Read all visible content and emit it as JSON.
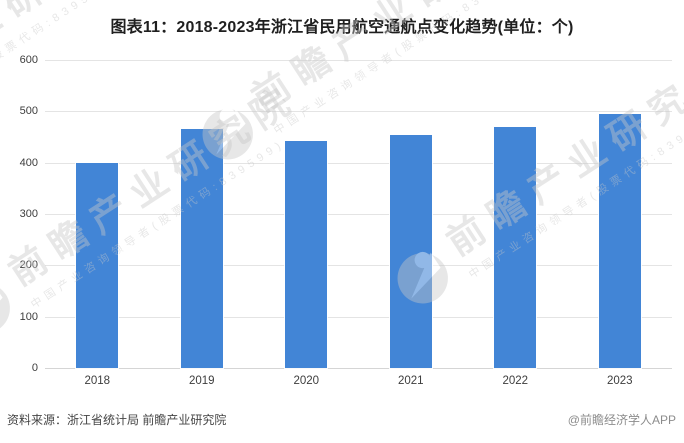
{
  "header": {
    "title": "图表11：2018-2023年浙江省民用航空通航点变化趋势(单位：个)"
  },
  "chart_data": {
    "type": "bar",
    "title": "图表11：2018-2023年浙江省民用航空通航点变化趋势(单位：个)",
    "unit": "个",
    "categories": [
      "2018",
      "2019",
      "2020",
      "2021",
      "2022",
      "2023"
    ],
    "values": [
      400,
      466,
      442,
      454,
      470,
      494
    ],
    "xlabel": "",
    "ylabel": "",
    "ylim": [
      0,
      600
    ],
    "yticks": [
      0,
      100,
      200,
      300,
      400,
      500,
      600
    ],
    "grid": true,
    "legend": false,
    "bar_color": "#4285d6",
    "gridline_color": "#e4e4e4"
  },
  "footer": {
    "source": "资料来源：浙江省统计局 前瞻产业研究院",
    "brand": "@前瞻经济学人APP"
  },
  "watermark": {
    "big_text": "前瞻产业研究院",
    "small_text": "中国产业咨询领导者(股票代码:839599)"
  }
}
